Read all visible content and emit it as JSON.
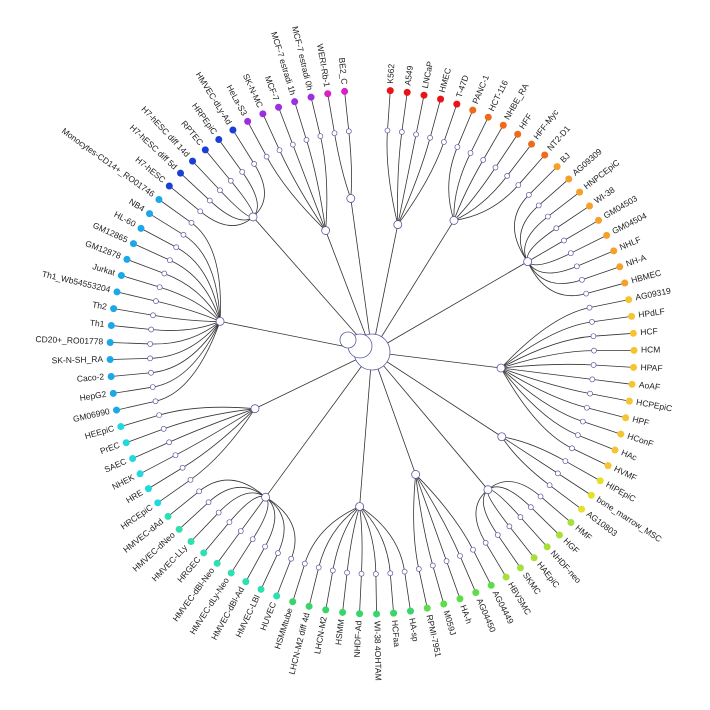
{
  "groups": [
    {
      "color": "#e8141a",
      "leaves": [
        "K562",
        "A549",
        "LNCaP",
        "HMEC",
        "T-47D"
      ]
    },
    {
      "color": "#f06a1c",
      "leaves": [
        "PANC-1",
        "HCT-116",
        "NHBE_RA",
        "HFF",
        "HFF-Myc",
        "NT2-D1"
      ]
    },
    {
      "color": "#f5a02a",
      "leaves": [
        "BJ",
        "AG09309",
        "HNPCEpiC",
        "WI-38",
        "GM04503",
        "GM04504",
        "NHLF",
        "NH-A",
        "HBMEC"
      ]
    },
    {
      "color": "#f5c431",
      "leaves": [
        "AG09319",
        "HPdLF",
        "HCF",
        "HCM",
        "HPAF",
        "AoAF",
        "HCPEpiC",
        "HPF",
        "HConF",
        "HAc",
        "HVMF"
      ]
    },
    {
      "color": "#e6e02a",
      "leaves": [
        "HIPEpiC",
        "bone_marrow_MSC",
        "AG10803"
      ]
    },
    {
      "color": "#a6e03a",
      "leaves": [
        "HMF",
        "HGF",
        "NHDF-neo",
        "HAEpiC",
        "SKMC",
        "HBVSMC"
      ]
    },
    {
      "color": "#5fdc4a",
      "leaves": [
        "AG04449",
        "AG04450",
        "HA-h",
        "M059J",
        "RPMI-7951"
      ]
    },
    {
      "color": "#36d66a",
      "leaves": [
        "HA-sp",
        "HCFaa",
        "WI-38 4OHTAM",
        "NHDF-Ad",
        "HSMM",
        "LHCN-M2",
        "LHCN-M2 diff 4d",
        "HSMMtube"
      ]
    },
    {
      "color": "#2ee0b0",
      "leaves": [
        "HUVEC",
        "HMVEC-LBl",
        "HMVEC-dBl-Ad",
        "HMVEC-dLy-Neo",
        "HMVEC-dBl-Neo",
        "HRGEC",
        "HMVEC-LLy",
        "HMVEC-dNeo",
        "HMVEC-dAd"
      ]
    },
    {
      "color": "#22d8e0",
      "leaves": [
        "HRCEpiC",
        "HRE",
        "NHEK",
        "SAEC",
        "PrEC",
        "HEEpiC"
      ]
    },
    {
      "color": "#1aa8e8",
      "leaves": [
        "GM06990",
        "HepG2",
        "Caco-2",
        "SK-N-SH_RA",
        "CD20+_RO01778",
        "Th1",
        "Th2",
        "Th1_Wb54553204",
        "Jurkat",
        "GM12878",
        "GM12865",
        "HL-60",
        "NB4",
        "Monocytes-CD14+_RO01746"
      ]
    },
    {
      "color": "#1a3fd8",
      "leaves": [
        "H7-hESC",
        "H7-hESC diff 5d",
        "H7-hESC diff 14d",
        "RPTEC",
        "HRPEpiC",
        "HMVEC-dLy-Ad"
      ]
    },
    {
      "color": "#9b30e0",
      "leaves": [
        "HeLa-S3",
        "SK-N-MC",
        "MCF-7",
        "MCF-7 estradi 1h",
        "MCF-7 estradi 0h"
      ]
    },
    {
      "color": "#d820c8",
      "leaves": [
        "WERI-Rb-1",
        "BE2_C"
      ]
    }
  ]
}
